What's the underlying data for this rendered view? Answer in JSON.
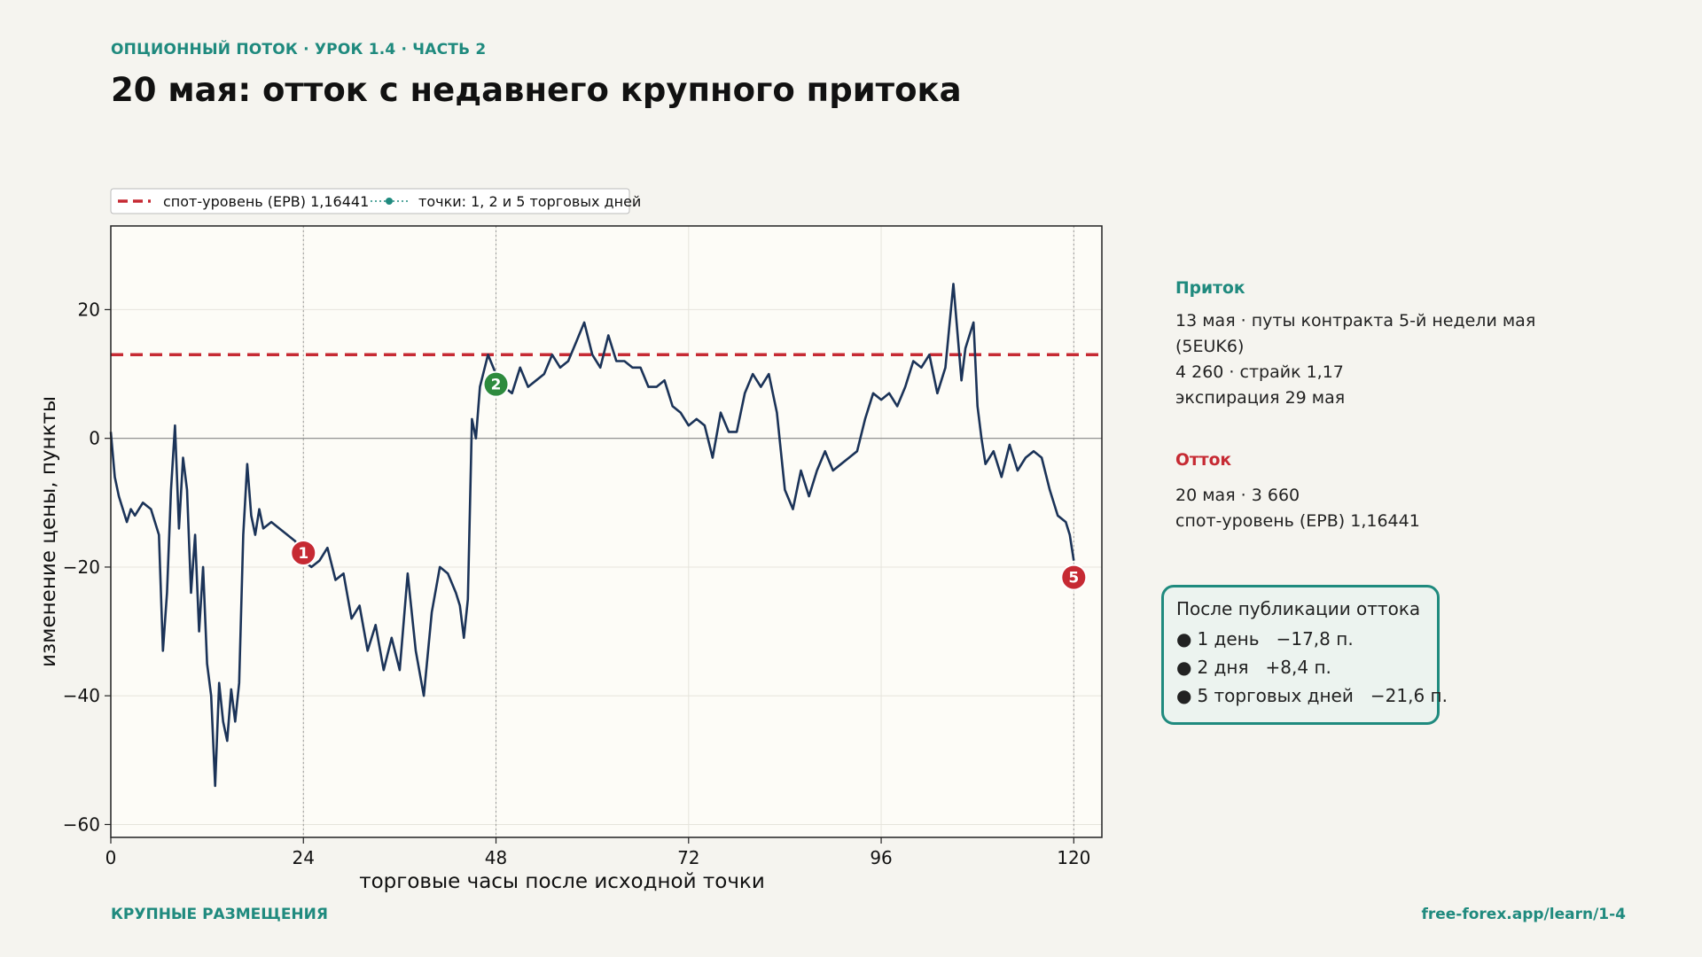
{
  "header": {
    "kicker": "ОПЦИОННЫЙ ПОТОК · УРОК 1.4 · ЧАСТЬ 2",
    "title": "20 мая: отток с недавнего крупного притока"
  },
  "footer": {
    "left": "КРУПНЫЕ РАЗМЕЩЕНИЯ",
    "right": "free-forex.app/learn/1-4"
  },
  "side": {
    "inflow_title": "Приток",
    "inflow_lines": [
      "13 мая · путы контракта 5-й недели мая (5EUK6)",
      "4 260 · страйк 1,17",
      "экспирация 29 мая"
    ],
    "outflow_title": "Отток",
    "outflow_lines": [
      "20 мая · 3 660",
      "спот-уровень (ЕРВ) 1,16441"
    ],
    "after_title": "После публикации оттока",
    "after_items": [
      "1 день   −17,8 п.",
      "2 дня   +8,4 п.",
      "5 торговых дней   −21,6 п."
    ]
  },
  "colors": {
    "line": "#1b3358",
    "spot": "#c62a33",
    "accent": "#1f8a7e",
    "marker_green": "#2e8b3e",
    "marker_red": "#c62a33",
    "plot_bg": "#fdfcf7"
  },
  "chart_data": {
    "type": "line",
    "xlabel": "торговые часы после исходной точки",
    "ylabel": "изменение цены, пункты",
    "xlim": [
      0,
      123.5
    ],
    "ylim": [
      -62,
      33
    ],
    "xticks": [
      0,
      24,
      48,
      72,
      96,
      120
    ],
    "yticks": [
      -60,
      -40,
      -20,
      0,
      20
    ],
    "grid": true,
    "legend_position": "top-left, above plot",
    "legend": [
      "спот-уровень (ЕРВ) 1,16441",
      "точки: 1, 2 и 5 торговых дней"
    ],
    "spot_level": 13,
    "vlines": [
      24,
      48,
      120
    ],
    "markers": [
      {
        "label": "1",
        "x": 24,
        "y": -17.8,
        "color": "red"
      },
      {
        "label": "2",
        "x": 48,
        "y": 8.4,
        "color": "green"
      },
      {
        "label": "5",
        "x": 120,
        "y": -21.6,
        "color": "red"
      }
    ],
    "series": [
      {
        "x": [
          0,
          0.5,
          1,
          1.5,
          2,
          2.5,
          3,
          4,
          5,
          6,
          6.5,
          7,
          7.5,
          8,
          8.5,
          9,
          9.5,
          10,
          10.5,
          11,
          11.5,
          12,
          12.5,
          13,
          13.5,
          14,
          14.5,
          15,
          15.5,
          16,
          16.5,
          17,
          17.5,
          18,
          18.5,
          19,
          20,
          21,
          22,
          23,
          24,
          25,
          26,
          27,
          28,
          29,
          30,
          31,
          32,
          33,
          34,
          35,
          36,
          37,
          38,
          39,
          40,
          41,
          42,
          43,
          43.5,
          44,
          44.5,
          45,
          45.5,
          46,
          47,
          48,
          49,
          50,
          51,
          52,
          53,
          54,
          55,
          56,
          57,
          58,
          59,
          60,
          61,
          62,
          63,
          64,
          65,
          66,
          67,
          68,
          69,
          70,
          71,
          72,
          73,
          74,
          75,
          76,
          77,
          78,
          79,
          80,
          81,
          82,
          83,
          84,
          85,
          86,
          87,
          88,
          89,
          90,
          91,
          92,
          93,
          94,
          95,
          96,
          97,
          98,
          99,
          100,
          101,
          102,
          103,
          104,
          105,
          106,
          106.5,
          107,
          107.5,
          108,
          108.5,
          109,
          110,
          111,
          112,
          113,
          114,
          115,
          116,
          117,
          118,
          119,
          119.5,
          120
        ],
        "y": [
          1,
          -6,
          -9,
          -11,
          -13,
          -11,
          -12,
          -10,
          -11,
          -15,
          -33,
          -24,
          -8,
          2,
          -14,
          -3,
          -8,
          -24,
          -15,
          -30,
          -20,
          -35,
          -40,
          -54,
          -38,
          -44,
          -47,
          -39,
          -44,
          -38,
          -15,
          -4,
          -12,
          -15,
          -11,
          -14,
          -13,
          -14,
          -15,
          -16,
          -19,
          -20,
          -19,
          -17,
          -22,
          -21,
          -28,
          -26,
          -33,
          -29,
          -36,
          -31,
          -36,
          -21,
          -33,
          -40,
          -27,
          -20,
          -21,
          -24,
          -26,
          -31,
          -25,
          3,
          0,
          8,
          13,
          10,
          8,
          7,
          11,
          8,
          9,
          10,
          13,
          11,
          12,
          15,
          18,
          13,
          11,
          16,
          12,
          12,
          11,
          11,
          8,
          8,
          9,
          5,
          4,
          2,
          3,
          2,
          -3,
          4,
          1,
          1,
          7,
          10,
          8,
          10,
          4,
          -8,
          -11,
          -5,
          -9,
          -5,
          -2,
          -5,
          -4,
          -3,
          -2,
          3,
          7,
          6,
          7,
          5,
          8,
          12,
          11,
          13,
          7,
          11,
          24,
          9,
          14,
          16,
          18,
          5,
          0,
          -4,
          -2,
          -6,
          -1,
          -5,
          -3,
          -2,
          -3,
          -8,
          -12,
          -13,
          -15,
          -19
        ]
      }
    ]
  }
}
